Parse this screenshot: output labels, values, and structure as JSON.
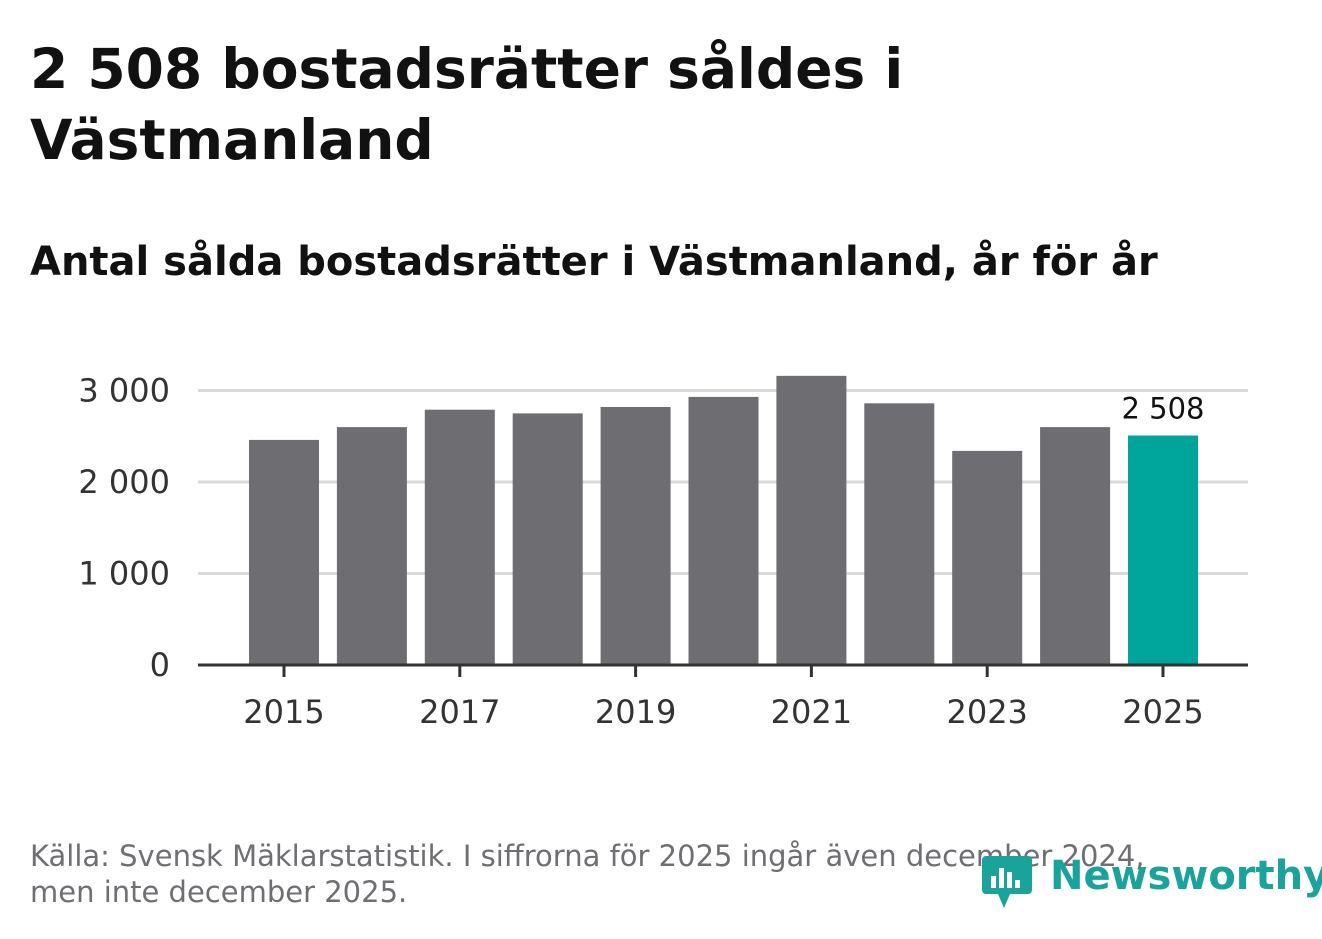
{
  "header": {
    "title": "2 508 bostadsrätter såldes i Västmanland",
    "subtitle": "Antal sålda bostadsrätter i Västmanland, år för år"
  },
  "footer": {
    "source": "Källa: Svensk Mäklarstatistik. I siffrorna för 2025 ingår även december 2024, men inte december 2025.",
    "logo_text": "Newsworthy"
  },
  "colors": {
    "bar": "#6e6d72",
    "highlight": "#00a599",
    "grid": "#d9d9d9",
    "axis": "#333333",
    "logo": "#1aa39a"
  },
  "chart_data": {
    "type": "bar",
    "title": "Antal sålda bostadsrätter i Västmanland, år för år",
    "xlabel": "",
    "ylabel": "",
    "categories": [
      "2015",
      "2016",
      "2017",
      "2018",
      "2019",
      "2020",
      "2021",
      "2022",
      "2023",
      "2024",
      "2025"
    ],
    "values": [
      2460,
      2600,
      2790,
      2750,
      2820,
      2930,
      3160,
      2860,
      2340,
      2600,
      2508
    ],
    "ylim": [
      0,
      3000
    ],
    "y_ticks": [
      0,
      1000,
      2000,
      3000
    ],
    "y_tick_labels": [
      "0",
      "1 000",
      "2 000",
      "3 000"
    ],
    "x_tick_labels": [
      "2015",
      "2017",
      "2019",
      "2021",
      "2023",
      "2025"
    ],
    "highlight_category": "2025",
    "data_labels": [
      {
        "category": "2025",
        "text": "2 508"
      }
    ],
    "grid": true
  }
}
